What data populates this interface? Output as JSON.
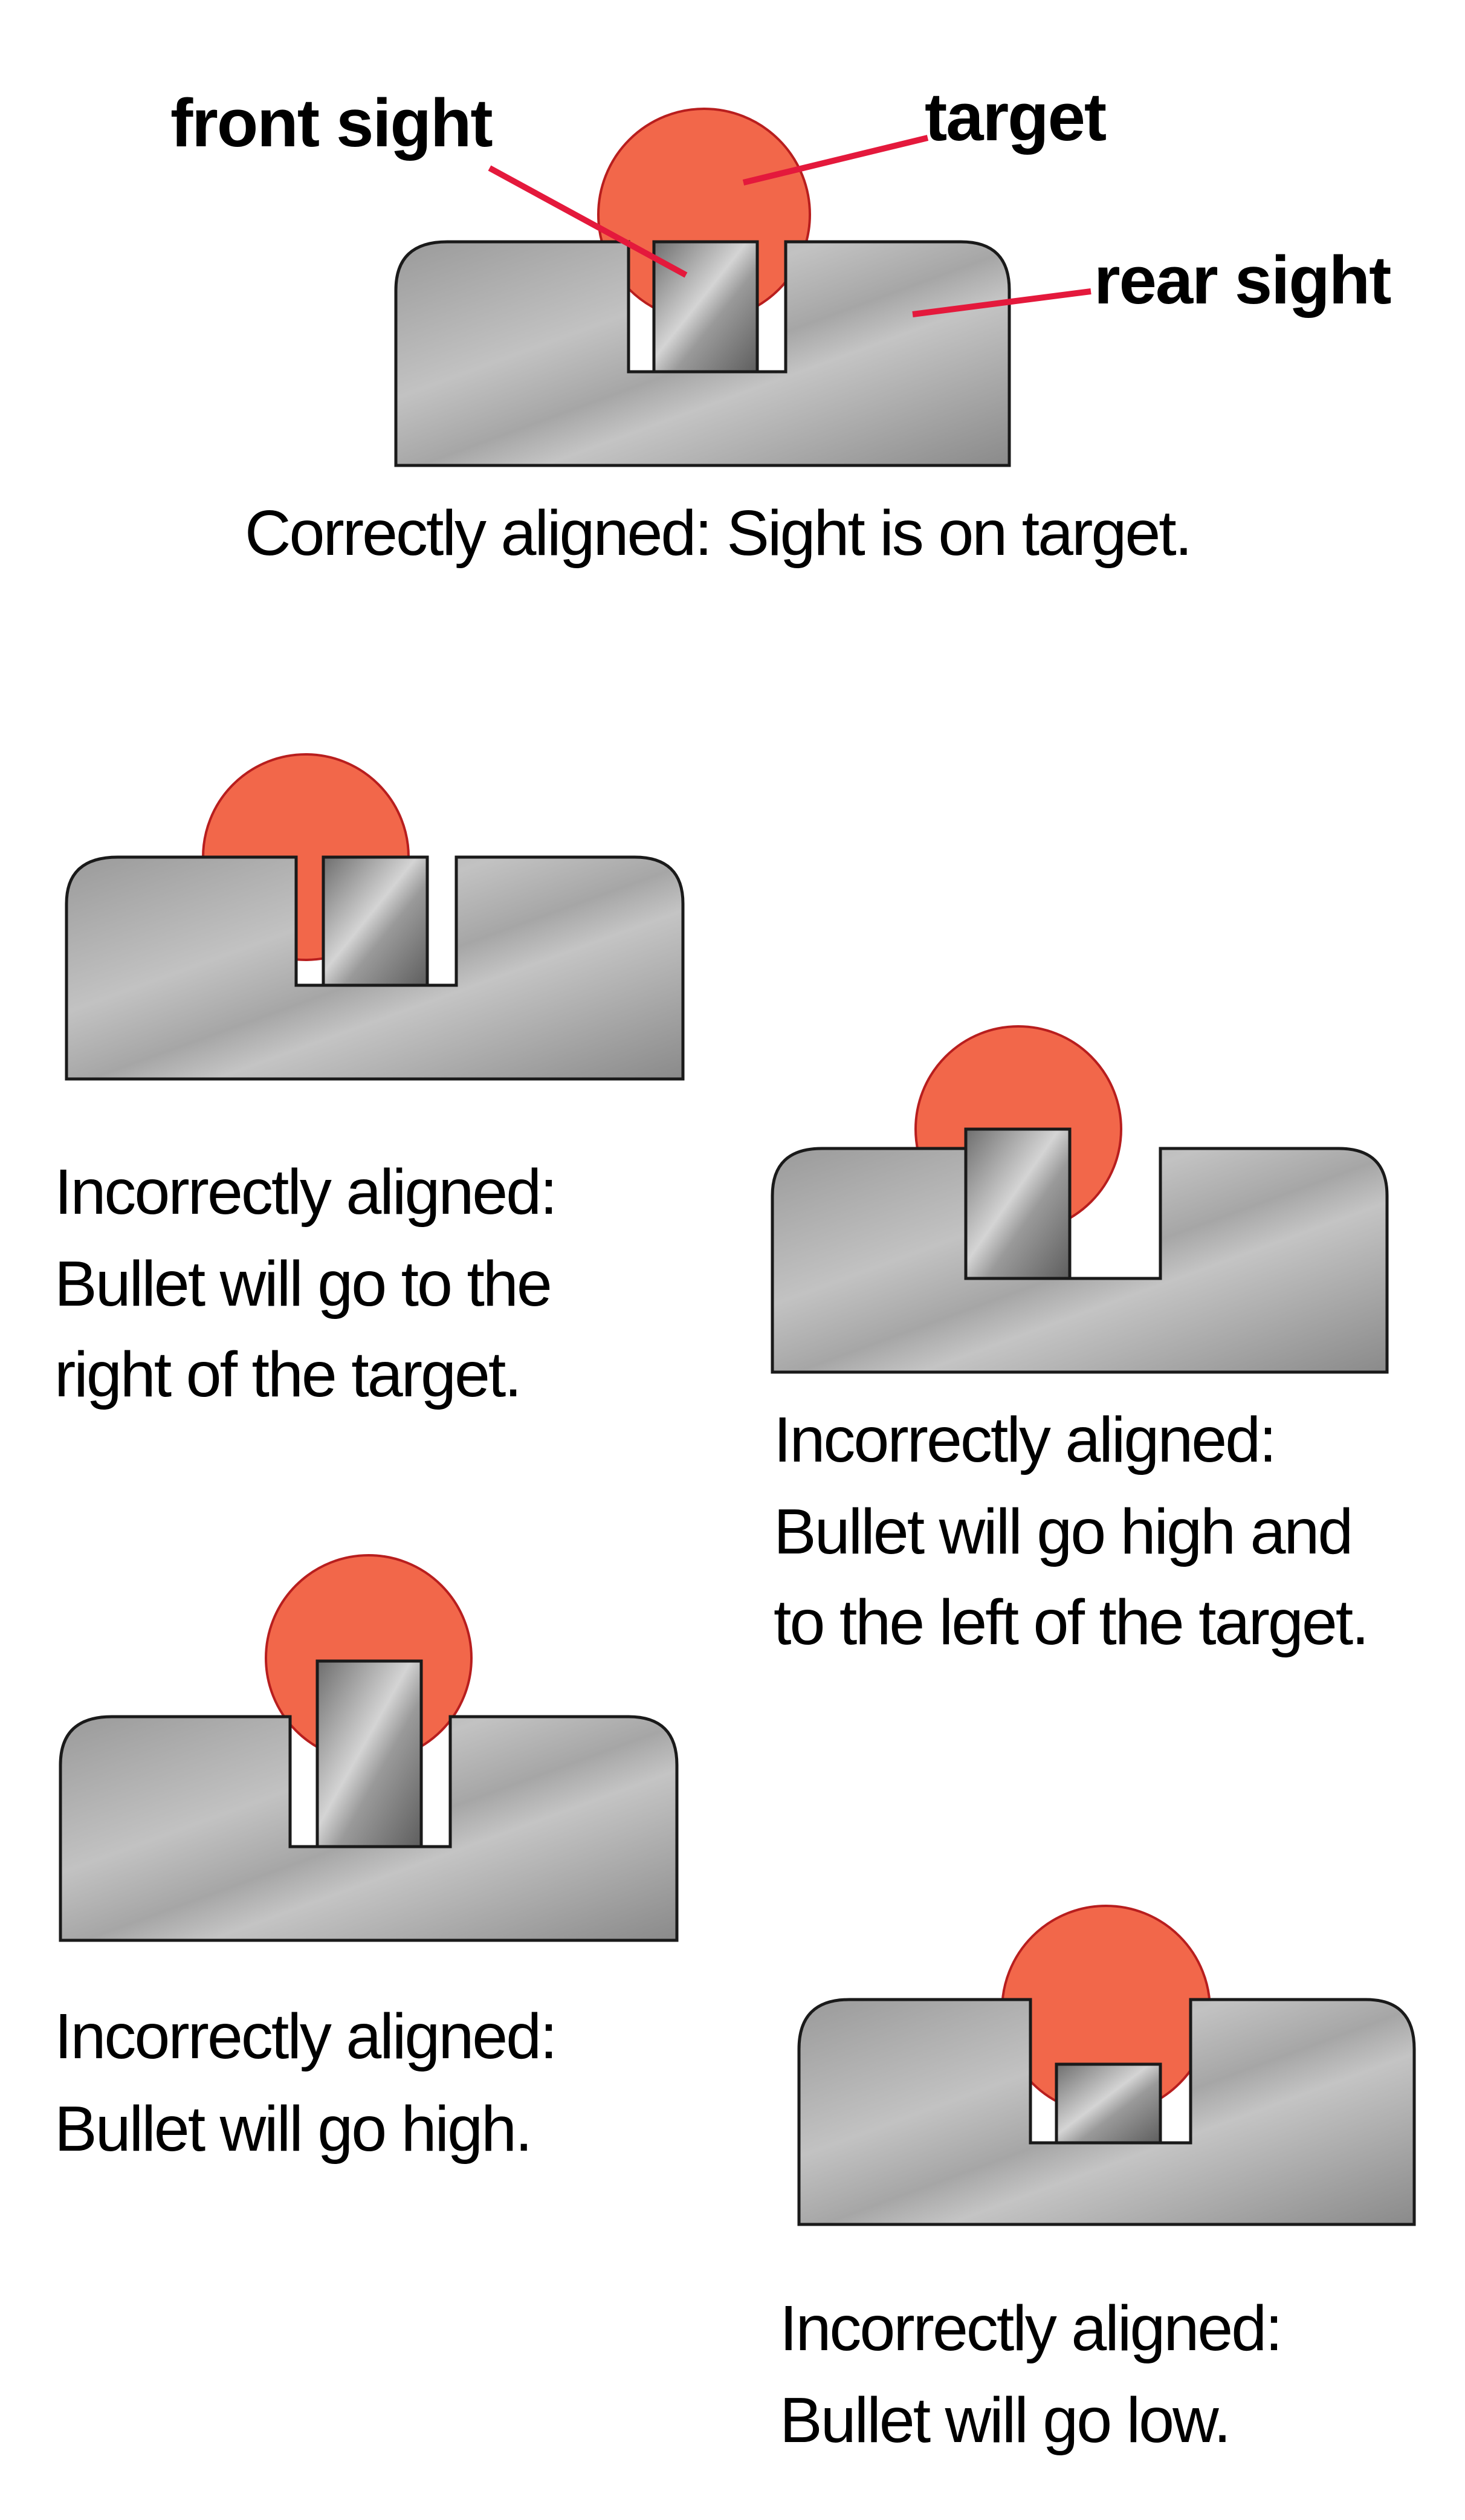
{
  "labels": {
    "front_sight": "front sight",
    "target": "target",
    "rear_sight": "rear sight"
  },
  "colors": {
    "target_fill": "#f2674a",
    "target_stroke": "#b81e1e",
    "leader_line": "#e4193c",
    "metal_light": "#bdbdbd",
    "metal_dark": "#8c8c8c",
    "outline": "#1a1a1a"
  },
  "panels": [
    {
      "id": "correct",
      "caption_lines": [
        "Correctly aligned: Sight is on target."
      ],
      "alignment": "centered"
    },
    {
      "id": "right",
      "caption_lines": [
        "Incorrectly aligned:",
        "Bullet will go to the",
        "right of the target."
      ],
      "alignment": "front sight left in notch"
    },
    {
      "id": "high-left",
      "caption_lines": [
        "Incorrectly aligned:",
        "Bullet will go high and",
        "to the left of the target."
      ],
      "alignment": "front sight high and left"
    },
    {
      "id": "high",
      "caption_lines": [
        "Incorrectly aligned:",
        "Bullet will go high."
      ],
      "alignment": "front sight high"
    },
    {
      "id": "low",
      "caption_lines": [
        "Incorrectly aligned:",
        "Bullet will go low."
      ],
      "alignment": "front sight low"
    }
  ]
}
